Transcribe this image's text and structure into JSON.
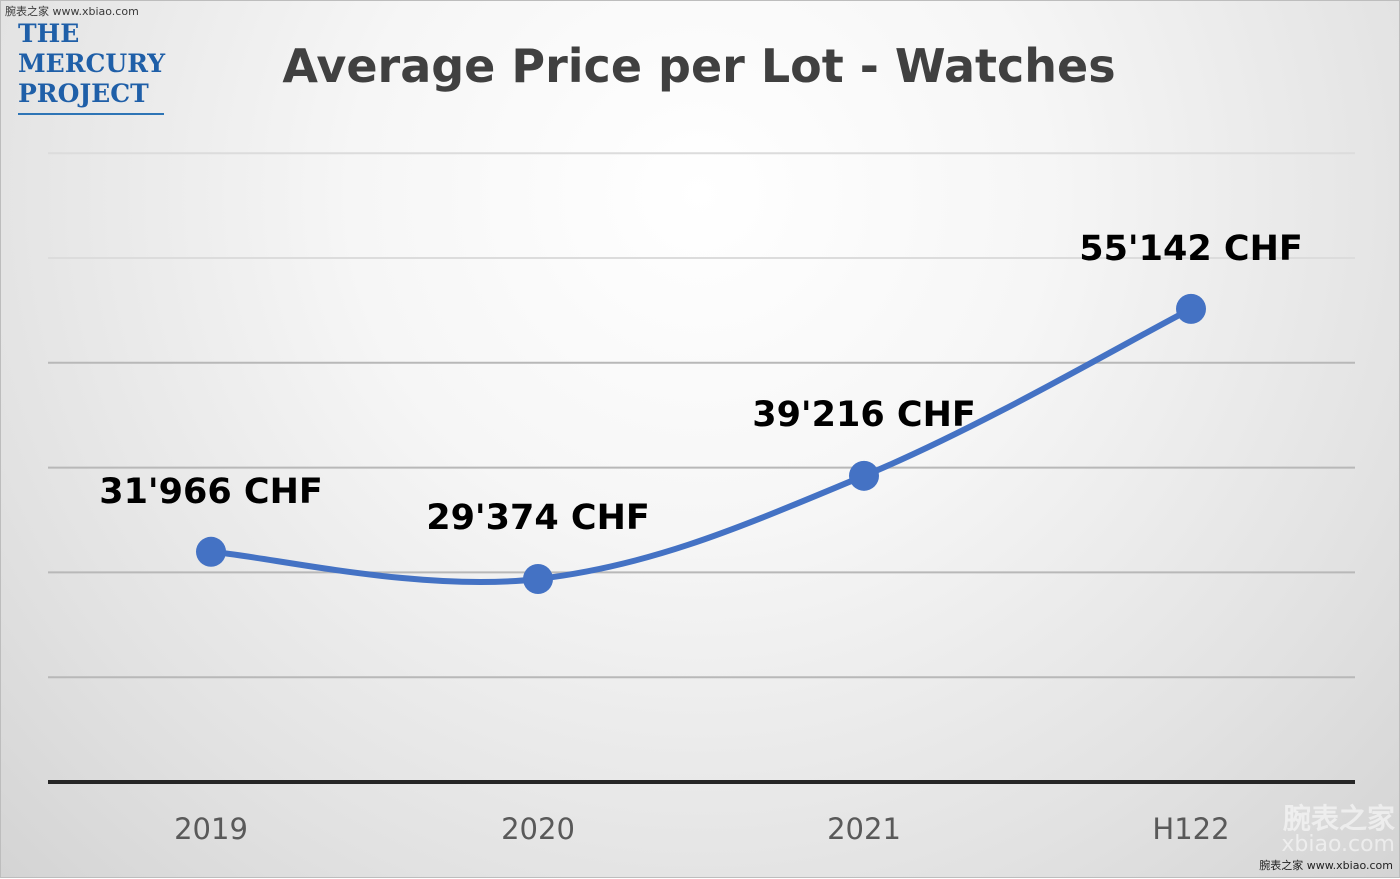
{
  "watermark": {
    "top": "腕表之家 www.xbiao.com",
    "bottom": "腕表之家 www.xbiao.com",
    "corner_cn": "腕表之家",
    "corner_url": "xbiao.com"
  },
  "logo": {
    "line1": "THE",
    "line2": "MERCURY",
    "line3": "PROJECT",
    "color": "#1f5fa8"
  },
  "chart_data": {
    "type": "line",
    "title": "Average Price per Lot - Watches",
    "categories": [
      "2019",
      "2020",
      "2021",
      "H122"
    ],
    "series": [
      {
        "values": [
          31966,
          29374,
          39216,
          55142
        ],
        "labels": [
          "31'966 CHF",
          "29'374 CHF",
          "39'216 CHF",
          "55'142 CHF"
        ],
        "color": "#4472c4"
      }
    ],
    "ylim": [
      10000,
      60000
    ],
    "y_gridlines": [
      10000,
      20000,
      30000,
      40000,
      50000,
      60000,
      70000
    ],
    "grid": true,
    "smooth": true,
    "xlabel": "",
    "ylabel": ""
  }
}
